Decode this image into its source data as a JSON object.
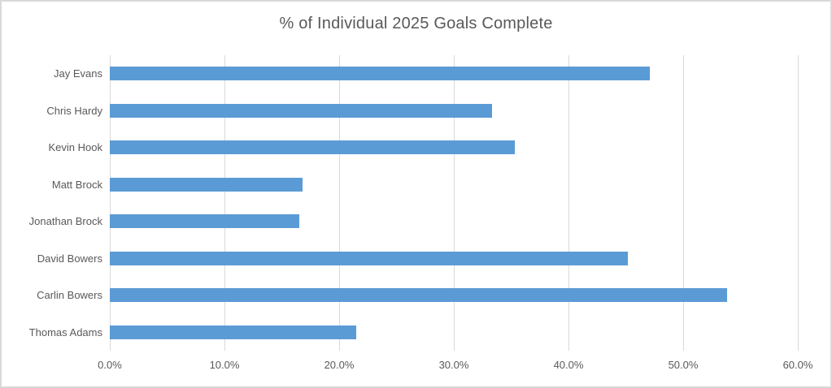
{
  "chart_data": {
    "type": "bar",
    "orientation": "horizontal",
    "title": "% of Individual 2025 Goals Complete",
    "categories": [
      "Jay Evans",
      "Chris Hardy",
      "Kevin Hook",
      "Matt Brock",
      "Jonathan Brock",
      "David Bowers",
      "Carlin Bowers",
      "Thomas Adams"
    ],
    "values": [
      47.1,
      33.3,
      35.3,
      16.8,
      16.5,
      45.2,
      53.8,
      21.5
    ],
    "value_unit": "%",
    "xlabel": "",
    "ylabel": "",
    "xlim": [
      0,
      60
    ],
    "x_ticks": [
      0,
      10,
      20,
      30,
      40,
      50,
      60
    ],
    "x_tick_labels": [
      "0.0%",
      "10.0%",
      "20.0%",
      "30.0%",
      "40.0%",
      "50.0%",
      "60.0%"
    ],
    "grid": "vertical",
    "legend": "none",
    "bar_color": "#5b9bd5",
    "gridline_color": "#d9d9d9",
    "text_color": "#595959",
    "background_color": "#ffffff",
    "border_color": "#d9d9d9"
  }
}
